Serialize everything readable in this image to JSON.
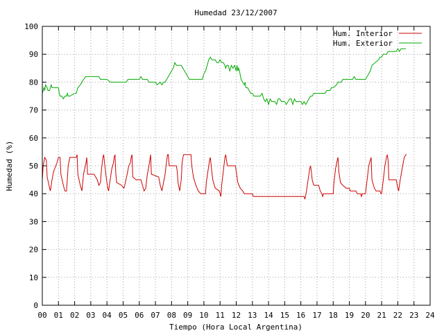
{
  "chart_data": {
    "type": "line",
    "title": "Humedad 23/12/2007",
    "xlabel": "Tiempo (Hora Local Argentina)",
    "ylabel": "Humedad (%)",
    "xlim": [
      0,
      24
    ],
    "ylim": [
      0,
      100
    ],
    "x_ticks": [
      "00",
      "01",
      "02",
      "03",
      "04",
      "05",
      "06",
      "07",
      "08",
      "09",
      "10",
      "11",
      "12",
      "13",
      "14",
      "15",
      "16",
      "17",
      "18",
      "19",
      "20",
      "21",
      "22",
      "23",
      "24"
    ],
    "y_ticks": [
      "0",
      "10",
      "20",
      "30",
      "40",
      "50",
      "60",
      "70",
      "80",
      "90",
      "100"
    ],
    "grid": true,
    "legend_position": "top-right",
    "series": [
      {
        "name": "Hum. Interior",
        "color": "#cc0000",
        "points": [
          [
            0.0,
            45
          ],
          [
            0.05,
            50
          ],
          [
            0.15,
            53
          ],
          [
            0.25,
            52
          ],
          [
            0.3,
            46
          ],
          [
            0.45,
            42
          ],
          [
            0.5,
            41
          ],
          [
            0.6,
            45
          ],
          [
            0.7,
            48
          ],
          [
            0.9,
            51
          ],
          [
            1.0,
            53
          ],
          [
            1.1,
            53
          ],
          [
            1.15,
            47
          ],
          [
            1.3,
            43
          ],
          [
            1.4,
            41
          ],
          [
            1.5,
            41
          ],
          [
            1.6,
            50
          ],
          [
            1.7,
            53
          ],
          [
            1.8,
            53
          ],
          [
            2.1,
            53
          ],
          [
            2.15,
            54
          ],
          [
            2.2,
            47
          ],
          [
            2.35,
            43
          ],
          [
            2.45,
            41
          ],
          [
            2.55,
            47
          ],
          [
            2.7,
            51
          ],
          [
            2.75,
            53
          ],
          [
            2.8,
            47
          ],
          [
            3.2,
            47
          ],
          [
            3.3,
            46
          ],
          [
            3.4,
            45
          ],
          [
            3.5,
            43
          ],
          [
            3.6,
            44
          ],
          [
            3.65,
            48
          ],
          [
            3.75,
            53
          ],
          [
            3.8,
            54
          ],
          [
            3.85,
            51
          ],
          [
            3.95,
            46
          ],
          [
            4.05,
            42
          ],
          [
            4.1,
            41
          ],
          [
            4.2,
            45
          ],
          [
            4.3,
            49
          ],
          [
            4.4,
            51
          ],
          [
            4.45,
            53
          ],
          [
            4.5,
            54
          ],
          [
            4.55,
            47
          ],
          [
            4.6,
            44
          ],
          [
            4.9,
            43
          ],
          [
            5.05,
            42
          ],
          [
            5.1,
            43
          ],
          [
            5.25,
            47
          ],
          [
            5.35,
            50
          ],
          [
            5.45,
            51
          ],
          [
            5.5,
            53
          ],
          [
            5.55,
            54
          ],
          [
            5.6,
            46
          ],
          [
            5.8,
            45
          ],
          [
            6.1,
            45
          ],
          [
            6.2,
            43
          ],
          [
            6.3,
            41
          ],
          [
            6.4,
            42
          ],
          [
            6.5,
            47
          ],
          [
            6.6,
            50
          ],
          [
            6.65,
            52
          ],
          [
            6.7,
            54
          ],
          [
            6.75,
            47
          ],
          [
            7.2,
            46
          ],
          [
            7.3,
            43
          ],
          [
            7.4,
            41
          ],
          [
            7.5,
            44
          ],
          [
            7.6,
            47
          ],
          [
            7.7,
            52
          ],
          [
            7.75,
            54
          ],
          [
            7.8,
            54
          ],
          [
            7.85,
            50
          ],
          [
            8.3,
            50
          ],
          [
            8.35,
            48
          ],
          [
            8.4,
            44
          ],
          [
            8.5,
            41
          ],
          [
            8.6,
            45
          ],
          [
            8.65,
            51
          ],
          [
            8.7,
            53
          ],
          [
            8.75,
            54
          ],
          [
            9.2,
            54
          ],
          [
            9.25,
            50
          ],
          [
            9.35,
            46
          ],
          [
            9.5,
            43
          ],
          [
            9.65,
            41
          ],
          [
            9.8,
            40
          ],
          [
            10.1,
            40
          ],
          [
            10.15,
            44
          ],
          [
            10.25,
            48
          ],
          [
            10.35,
            52
          ],
          [
            10.4,
            53
          ],
          [
            10.45,
            50
          ],
          [
            10.55,
            45
          ],
          [
            10.7,
            42
          ],
          [
            10.95,
            41
          ],
          [
            11.0,
            40
          ],
          [
            11.05,
            39
          ],
          [
            11.1,
            43
          ],
          [
            11.2,
            48
          ],
          [
            11.3,
            53
          ],
          [
            11.35,
            54
          ],
          [
            11.4,
            52
          ],
          [
            11.45,
            50
          ],
          [
            11.95,
            50
          ],
          [
            12.0,
            48
          ],
          [
            12.1,
            44
          ],
          [
            12.25,
            42
          ],
          [
            12.4,
            41
          ],
          [
            12.5,
            40
          ],
          [
            13.0,
            40
          ],
          [
            13.05,
            39
          ],
          [
            16.2,
            39
          ],
          [
            16.25,
            38
          ],
          [
            16.35,
            41
          ],
          [
            16.45,
            45
          ],
          [
            16.55,
            49
          ],
          [
            16.6,
            50
          ],
          [
            16.65,
            48
          ],
          [
            16.7,
            45
          ],
          [
            16.8,
            43
          ],
          [
            17.1,
            43
          ],
          [
            17.2,
            41
          ],
          [
            17.3,
            40
          ],
          [
            17.35,
            39
          ],
          [
            17.4,
            40
          ],
          [
            18.0,
            40
          ],
          [
            18.05,
            44
          ],
          [
            18.15,
            49
          ],
          [
            18.25,
            52
          ],
          [
            18.3,
            53
          ],
          [
            18.35,
            48
          ],
          [
            18.45,
            44
          ],
          [
            18.6,
            43
          ],
          [
            18.8,
            42
          ],
          [
            19.0,
            42
          ],
          [
            19.05,
            41
          ],
          [
            19.4,
            41
          ],
          [
            19.5,
            40
          ],
          [
            19.7,
            40
          ],
          [
            19.75,
            39
          ],
          [
            19.8,
            40
          ],
          [
            20.0,
            40
          ],
          [
            20.1,
            45
          ],
          [
            20.2,
            50
          ],
          [
            20.3,
            52
          ],
          [
            20.35,
            53
          ],
          [
            20.4,
            45
          ],
          [
            20.55,
            42
          ],
          [
            20.65,
            41
          ],
          [
            20.9,
            41
          ],
          [
            20.95,
            40
          ],
          [
            21.0,
            40
          ],
          [
            21.1,
            45
          ],
          [
            21.2,
            50
          ],
          [
            21.3,
            53
          ],
          [
            21.35,
            54
          ],
          [
            21.4,
            52
          ],
          [
            21.45,
            45
          ],
          [
            21.9,
            45
          ],
          [
            22.0,
            42
          ],
          [
            22.05,
            41
          ],
          [
            22.15,
            45
          ],
          [
            22.3,
            50
          ],
          [
            22.4,
            53
          ],
          [
            22.5,
            54
          ],
          [
            22.55,
            54
          ]
        ]
      },
      {
        "name": "Hum. Exterior",
        "color": "#00aa00",
        "points": [
          [
            0.0,
            76
          ],
          [
            0.05,
            77
          ],
          [
            0.1,
            78
          ],
          [
            0.15,
            77
          ],
          [
            0.2,
            79
          ],
          [
            0.3,
            78
          ],
          [
            0.35,
            77
          ],
          [
            0.45,
            77
          ],
          [
            0.5,
            78
          ],
          [
            0.55,
            79
          ],
          [
            0.6,
            78
          ],
          [
            1.0,
            78
          ],
          [
            1.05,
            76
          ],
          [
            1.1,
            75
          ],
          [
            1.2,
            75
          ],
          [
            1.3,
            74
          ],
          [
            1.4,
            75
          ],
          [
            1.5,
            75
          ],
          [
            1.55,
            76
          ],
          [
            1.6,
            75
          ],
          [
            1.7,
            75
          ],
          [
            2.0,
            76
          ],
          [
            2.1,
            76
          ],
          [
            2.2,
            78
          ],
          [
            2.35,
            79
          ],
          [
            2.45,
            80
          ],
          [
            2.55,
            81
          ],
          [
            2.7,
            82
          ],
          [
            3.5,
            82
          ],
          [
            3.6,
            81
          ],
          [
            4.0,
            81
          ],
          [
            4.2,
            80
          ],
          [
            5.2,
            80
          ],
          [
            5.3,
            81
          ],
          [
            5.8,
            81
          ],
          [
            6.0,
            81
          ],
          [
            6.1,
            82
          ],
          [
            6.2,
            81
          ],
          [
            6.5,
            81
          ],
          [
            6.6,
            80
          ],
          [
            7.0,
            80
          ],
          [
            7.1,
            79
          ],
          [
            7.3,
            80
          ],
          [
            7.4,
            79
          ],
          [
            7.5,
            80
          ],
          [
            7.6,
            80
          ],
          [
            7.7,
            81
          ],
          [
            7.8,
            82
          ],
          [
            7.9,
            83
          ],
          [
            8.0,
            84
          ],
          [
            8.1,
            85
          ],
          [
            8.2,
            87
          ],
          [
            8.3,
            86
          ],
          [
            8.4,
            86
          ],
          [
            8.6,
            86
          ],
          [
            8.7,
            85
          ],
          [
            8.8,
            84
          ],
          [
            8.9,
            83
          ],
          [
            9.0,
            82
          ],
          [
            9.1,
            81
          ],
          [
            9.9,
            81
          ],
          [
            10.0,
            83
          ],
          [
            10.1,
            84
          ],
          [
            10.2,
            86
          ],
          [
            10.3,
            88
          ],
          [
            10.4,
            89
          ],
          [
            10.5,
            88
          ],
          [
            10.6,
            88
          ],
          [
            10.7,
            88
          ],
          [
            10.8,
            87
          ],
          [
            10.9,
            87
          ],
          [
            11.0,
            88
          ],
          [
            11.1,
            87
          ],
          [
            11.2,
            87
          ],
          [
            11.3,
            86
          ],
          [
            11.35,
            85
          ],
          [
            11.4,
            86
          ],
          [
            11.5,
            86
          ],
          [
            11.6,
            84
          ],
          [
            11.7,
            86
          ],
          [
            11.8,
            85
          ],
          [
            11.9,
            86
          ],
          [
            12.0,
            84
          ],
          [
            12.05,
            86
          ],
          [
            12.1,
            84
          ],
          [
            12.15,
            85
          ],
          [
            12.2,
            84
          ],
          [
            12.3,
            81
          ],
          [
            12.4,
            80
          ],
          [
            12.5,
            79
          ],
          [
            12.55,
            80
          ],
          [
            12.6,
            78
          ],
          [
            12.7,
            78
          ],
          [
            12.8,
            77
          ],
          [
            12.9,
            76
          ],
          [
            13.0,
            76
          ],
          [
            13.1,
            75
          ],
          [
            13.2,
            75
          ],
          [
            13.5,
            75
          ],
          [
            13.6,
            76
          ],
          [
            13.7,
            74
          ],
          [
            13.8,
            73
          ],
          [
            13.9,
            74
          ],
          [
            14.0,
            72
          ],
          [
            14.1,
            74
          ],
          [
            14.2,
            73
          ],
          [
            14.4,
            73
          ],
          [
            14.5,
            72
          ],
          [
            14.6,
            74
          ],
          [
            14.7,
            74
          ],
          [
            14.8,
            73
          ],
          [
            15.0,
            73
          ],
          [
            15.1,
            72
          ],
          [
            15.2,
            73
          ],
          [
            15.3,
            74
          ],
          [
            15.4,
            74
          ],
          [
            15.5,
            72
          ],
          [
            15.6,
            74
          ],
          [
            15.7,
            73
          ],
          [
            16.0,
            73
          ],
          [
            16.1,
            72
          ],
          [
            16.2,
            73
          ],
          [
            16.3,
            72
          ],
          [
            16.4,
            73
          ],
          [
            16.5,
            74
          ],
          [
            16.6,
            75
          ],
          [
            16.7,
            75
          ],
          [
            16.8,
            76
          ],
          [
            17.3,
            76
          ],
          [
            17.5,
            76
          ],
          [
            17.6,
            77
          ],
          [
            17.8,
            77
          ],
          [
            17.9,
            78
          ],
          [
            18.0,
            78
          ],
          [
            18.2,
            79
          ],
          [
            18.3,
            80
          ],
          [
            18.5,
            80
          ],
          [
            18.6,
            81
          ],
          [
            19.2,
            81
          ],
          [
            19.3,
            82
          ],
          [
            19.4,
            81
          ],
          [
            20.0,
            81
          ],
          [
            20.1,
            82
          ],
          [
            20.2,
            83
          ],
          [
            20.3,
            84
          ],
          [
            20.4,
            86
          ],
          [
            20.6,
            87
          ],
          [
            20.8,
            88
          ],
          [
            20.9,
            89
          ],
          [
            21.0,
            89
          ],
          [
            21.1,
            90
          ],
          [
            21.3,
            90
          ],
          [
            21.4,
            91
          ],
          [
            21.9,
            91
          ],
          [
            22.0,
            92
          ],
          [
            22.1,
            91
          ],
          [
            22.2,
            92
          ],
          [
            22.5,
            92
          ]
        ]
      }
    ]
  }
}
